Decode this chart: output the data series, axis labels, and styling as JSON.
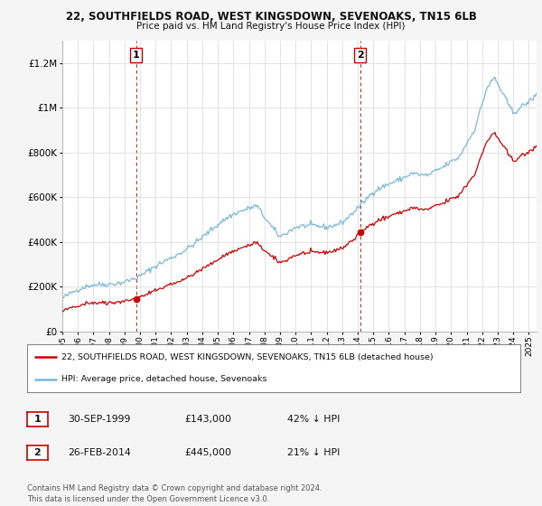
{
  "title1": "22, SOUTHFIELDS ROAD, WEST KINGSDOWN, SEVENOAKS, TN15 6LB",
  "title2": "Price paid vs. HM Land Registry's House Price Index (HPI)",
  "background_color": "#f5f5f5",
  "plot_bg_color": "#ffffff",
  "hpi_color": "#7ab8d9",
  "price_color": "#cc0000",
  "marker_color": "#cc0000",
  "vline_color": "#cc0000",
  "ylim": [
    0,
    1300000
  ],
  "yticks": [
    0,
    200000,
    400000,
    600000,
    800000,
    1000000,
    1200000
  ],
  "ytick_labels": [
    "£0",
    "£200K",
    "£400K",
    "£600K",
    "£800K",
    "£1M",
    "£1.2M"
  ],
  "sale1_year": 1999.75,
  "sale1_price": 143000,
  "sale2_year": 2014.15,
  "sale2_price": 445000,
  "legend_line1": "22, SOUTHFIELDS ROAD, WEST KINGSDOWN, SEVENOAKS, TN15 6LB (detached house)",
  "legend_line2": "HPI: Average price, detached house, Sevenoaks",
  "footer": "Contains HM Land Registry data © Crown copyright and database right 2024.\nThis data is licensed under the Open Government Licence v3.0.",
  "xmin": 1995,
  "xmax": 2025.5,
  "table": [
    {
      "num": "1",
      "date": "30-SEP-1999",
      "price": "£143,000",
      "hpi": "42% ↓ HPI"
    },
    {
      "num": "2",
      "date": "26-FEB-2014",
      "price": "£445,000",
      "hpi": "21% ↓ HPI"
    }
  ]
}
